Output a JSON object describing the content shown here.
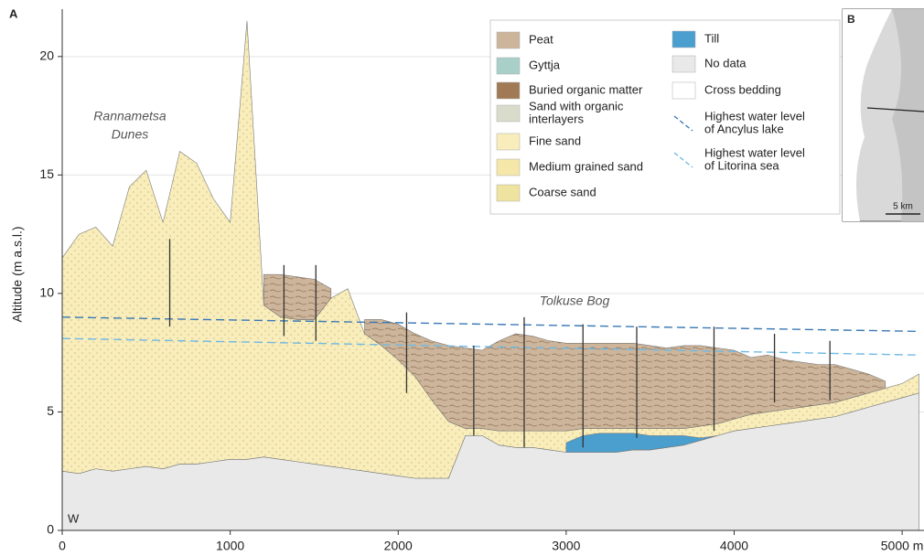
{
  "chart_data": {
    "type": "section",
    "panel_label": "A",
    "inset_label": "B",
    "inset_scale": "5 km",
    "y_label": "Altitude (m a.s.l.)",
    "side_label": "W",
    "annotations": [
      [
        "Rannametsa",
        "Dunes"
      ],
      [
        "Tolkuse Bog"
      ]
    ],
    "xlim": [
      0,
      5130
    ],
    "ylim": [
      0,
      22
    ],
    "xticks": [
      0,
      1000,
      2000,
      3000,
      4000,
      {
        "value": 5000,
        "label": "5000 m"
      }
    ],
    "yticks": [
      0,
      5,
      10,
      15,
      20
    ],
    "grid": true,
    "x": [
      0,
      100,
      200,
      300,
      400,
      500,
      600,
      700,
      800,
      900,
      1000,
      1100,
      1200,
      1300,
      1400,
      1500,
      1600,
      1700,
      1800,
      1900,
      2000,
      2100,
      2200,
      2300,
      2400,
      2500,
      2600,
      2700,
      2800,
      2900,
      3000,
      3100,
      3200,
      3300,
      3400,
      3500,
      3600,
      3700,
      3800,
      3900,
      4000,
      4100,
      4200,
      4300,
      4400,
      4500,
      4600,
      4700,
      4800,
      4900,
      5000,
      5100
    ],
    "series": [
      {
        "color": "#e9e9e9",
        "values": [
          2.5,
          2.4,
          2.6,
          2.5,
          2.6,
          2.7,
          2.6,
          2.8,
          2.8,
          2.9,
          3.0,
          3.0,
          3.1,
          3.0,
          2.9,
          2.8,
          2.7,
          2.6,
          2.5,
          2.4,
          2.3,
          2.2,
          2.2,
          2.2,
          4.0,
          4.0,
          3.6,
          3.5,
          3.5,
          3.4,
          3.3,
          3.3,
          3.3,
          3.3,
          3.4,
          3.4,
          3.5,
          3.6,
          3.8,
          4.0,
          4.2,
          4.3,
          4.4,
          4.5,
          4.6,
          4.7,
          4.8,
          5.0,
          5.2,
          5.4,
          5.6,
          5.8
        ]
      },
      {
        "color": "#f8edbb",
        "values": [
          11.5,
          12.5,
          12.8,
          12.0,
          14.5,
          15.2,
          13.0,
          16.0,
          15.5,
          14.0,
          13.0,
          21.5,
          9.5,
          9.0,
          8.9,
          8.9,
          9.8,
          10.2,
          8.3,
          7.8,
          7.2,
          6.5,
          5.5,
          4.6,
          4.3,
          4.3,
          4.2,
          4.2,
          4.2,
          4.2,
          4.2,
          4.3,
          4.3,
          4.3,
          4.3,
          4.3,
          4.3,
          4.3,
          4.4,
          4.5,
          4.7,
          4.9,
          5.0,
          5.1,
          5.2,
          5.3,
          5.4,
          5.6,
          5.8,
          6.0,
          6.2,
          6.6
        ]
      },
      {
        "color": "#4a9fcf",
        "values": [
          null,
          null,
          null,
          null,
          null,
          null,
          null,
          null,
          null,
          null,
          null,
          null,
          null,
          null,
          null,
          null,
          null,
          null,
          null,
          null,
          null,
          null,
          null,
          null,
          null,
          null,
          null,
          null,
          null,
          null,
          3.7,
          4.0,
          4.1,
          4.1,
          4.1,
          4.0,
          4.0,
          4.0,
          3.9,
          4.0,
          null,
          null,
          null,
          null,
          null,
          null,
          null,
          null,
          null,
          null,
          null,
          null
        ]
      },
      {
        "color": "#cdb59b",
        "values": [
          null,
          null,
          null,
          null,
          null,
          null,
          null,
          null,
          null,
          null,
          null,
          null,
          10.8,
          10.8,
          10.7,
          10.6,
          10.2,
          null,
          8.9,
          8.9,
          8.7,
          8.3,
          8.0,
          7.8,
          7.7,
          7.6,
          8.0,
          8.3,
          8.2,
          8.0,
          7.9,
          7.9,
          7.9,
          7.9,
          7.9,
          7.8,
          7.7,
          7.8,
          7.8,
          7.7,
          7.6,
          7.3,
          7.4,
          7.2,
          7.1,
          7.0,
          7.0,
          6.8,
          6.6,
          6.3,
          null,
          null
        ]
      }
    ],
    "water_levels": [
      {
        "color": "#3a78b5",
        "x": [
          0,
          5100
        ],
        "values": [
          9.0,
          8.4
        ]
      },
      {
        "color": "#6fb9e3",
        "x": [
          0,
          5100
        ],
        "values": [
          8.1,
          7.4
        ]
      }
    ],
    "boreholes": {
      "x": [
        640,
        1320,
        1510,
        2050,
        2450,
        2750,
        3100,
        3420,
        3880,
        4240,
        4570
      ],
      "top": [
        12.3,
        11.2,
        11.2,
        9.2,
        7.8,
        9.0,
        8.7,
        8.6,
        8.6,
        8.3,
        8.0
      ],
      "bottom": [
        8.6,
        8.2,
        8.0,
        5.8,
        4.0,
        3.5,
        3.5,
        3.9,
        4.2,
        5.4,
        5.5
      ]
    },
    "legend": [
      {
        "label": [
          "Peat"
        ],
        "color": "#cdb59b"
      },
      {
        "label": [
          "Gyttja"
        ],
        "color": "#a9cfc9"
      },
      {
        "label": [
          "Buried organic matter"
        ],
        "color": "#a07a55"
      },
      {
        "label": [
          "Sand with organic",
          "interlayers"
        ],
        "color": "#d9dccb"
      },
      {
        "label": [
          "Fine sand"
        ],
        "color": "#f8edbb"
      },
      {
        "label": [
          "Medium grained sand"
        ],
        "color": "#f5e7a8"
      },
      {
        "label": [
          "Coarse sand"
        ],
        "color": "#efe3a0"
      },
      {
        "label": [
          "Till"
        ],
        "color": "#4a9fcf"
      },
      {
        "label": [
          "No data"
        ],
        "color": "#e9e9e9"
      },
      {
        "label": [
          "Cross bedding"
        ],
        "color": "#ffffff"
      },
      {
        "label": [
          "Highest water level",
          "of Ancylus lake"
        ],
        "color": "#3a78b5",
        "kind": "line"
      },
      {
        "label": [
          "Highest water level",
          "of Litorina sea"
        ],
        "color": "#6fb9e3",
        "kind": "line"
      }
    ]
  }
}
